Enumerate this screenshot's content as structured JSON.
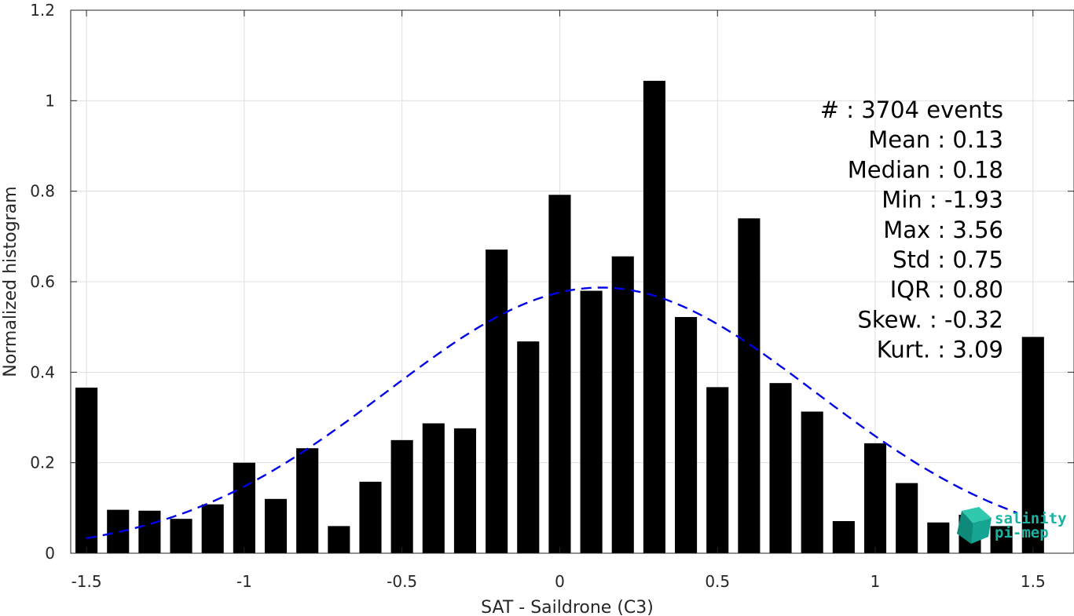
{
  "chart_data": {
    "type": "bar",
    "xlabel": "SAT - Saildrone (C3)",
    "ylabel": "Normalized histogram",
    "xlim": [
      -1.55,
      1.63
    ],
    "ylim": [
      0,
      1.2
    ],
    "xticks": [
      -1.5,
      -1,
      -0.5,
      0,
      0.5,
      1,
      1.5
    ],
    "xtick_labels": [
      "-1.5",
      "-1",
      "-0.5",
      "0",
      "0.5",
      "1",
      "1.5"
    ],
    "yticks": [
      0,
      0.2,
      0.4,
      0.6,
      0.8,
      1,
      1.2
    ],
    "ytick_labels": [
      "0",
      "0.2",
      "0.4",
      "0.6",
      "0.8",
      "1",
      "1.2"
    ],
    "grid": true,
    "bar_color": "#000000",
    "bars": {
      "x": [
        -1.5,
        -1.4,
        -1.3,
        -1.2,
        -1.1,
        -1.0,
        -0.9,
        -0.8,
        -0.7,
        -0.6,
        -0.5,
        -0.4,
        -0.3,
        -0.2,
        -0.1,
        0.0,
        0.1,
        0.2,
        0.3,
        0.4,
        0.5,
        0.6,
        0.7,
        0.8,
        0.9,
        1.0,
        1.1,
        1.2,
        1.3,
        1.4,
        1.5
      ],
      "values": [
        0.366,
        0.096,
        0.094,
        0.076,
        0.108,
        0.2,
        0.12,
        0.232,
        0.06,
        0.158,
        0.25,
        0.287,
        0.276,
        0.671,
        0.468,
        0.792,
        0.58,
        0.656,
        1.044,
        0.522,
        0.367,
        0.74,
        0.376,
        0.313,
        0.071,
        0.243,
        0.155,
        0.068,
        0.085,
        0.06,
        0.478
      ]
    },
    "fit": {
      "color": "#0000e6",
      "style": "dashed",
      "mean": 0.13,
      "std": 0.68,
      "peak": 0.587,
      "x_range": [
        -1.5,
        1.45
      ]
    },
    "annotations": [
      "#  : 3704 events",
      "Mean : 0.13",
      "Median : 0.18",
      "Min : -1.93",
      "Max : 3.56",
      "Std : 0.75",
      "IQR : 0.80",
      "Skew. : -0.32",
      "Kurt. : 3.09"
    ]
  },
  "logo": {
    "line1": "salinity",
    "line2": "pi-mep",
    "color": "#1ab3a0"
  }
}
